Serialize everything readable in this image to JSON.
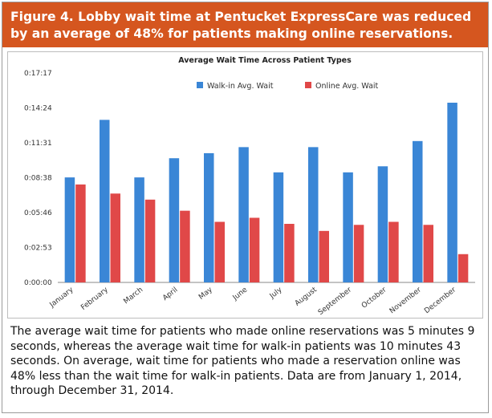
{
  "figure": {
    "title": "Figure 4. Lobby wait time at Pentucket ExpressCare was reduced by an average of 48% for patients making online reservations.",
    "caption": "The average wait time for patients who made online reservations was 5 minutes 9 seconds, whereas the average wait time for walk-in patients was 10 minutes 43 seconds. On average, wait time for patients who made a reservation online was 48% less than the wait time for walk-in patients. Data are from January 1, 2014, through December 31, 2014."
  },
  "chart_data": {
    "type": "bar",
    "title": "Average Wait Time Across Patient Types",
    "categories": [
      "January",
      "February",
      "March",
      "April",
      "May",
      "June",
      "July",
      "August",
      "September",
      "October",
      "November",
      "December"
    ],
    "series": [
      {
        "name": "Walk-in Avg. Wait",
        "color": "#3a86d6",
        "values": [
          520,
          805,
          520,
          615,
          640,
          670,
          545,
          670,
          545,
          575,
          700,
          890
        ]
      },
      {
        "name": "Online Avg. Wait",
        "color": "#e04848",
        "values": [
          485,
          440,
          410,
          355,
          300,
          320,
          290,
          255,
          285,
          300,
          285,
          140
        ]
      }
    ],
    "y_unit": "seconds",
    "yticks": [
      "0:00:00",
      "0:02:53",
      "0:05:46",
      "0:08:38",
      "0:11:31",
      "0:14:24",
      "0:17:17"
    ],
    "ylim": [
      0,
      1037
    ],
    "grid": false,
    "legend": "top-center"
  }
}
